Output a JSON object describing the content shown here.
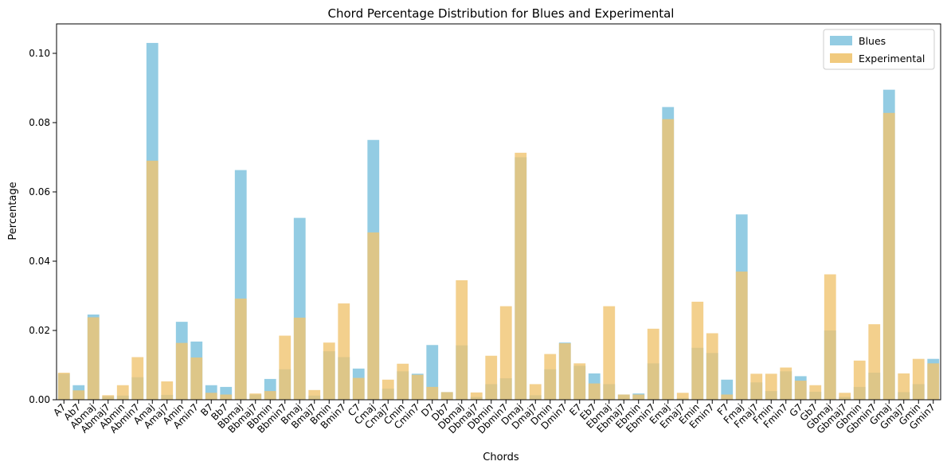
{
  "chart_data": {
    "type": "bar",
    "title": "Chord Percentage Distribution for Blues and Experimental",
    "xlabel": "Chords",
    "ylabel": "Percentage",
    "ylim": [
      0,
      0.1085
    ],
    "yticks": [
      0.0,
      0.02,
      0.04,
      0.06,
      0.08,
      0.1
    ],
    "ytick_labels": [
      "0.00",
      "0.02",
      "0.04",
      "0.06",
      "0.08",
      "0.10"
    ],
    "grid": false,
    "legend_position": "top-right",
    "overlay": true,
    "categories": [
      "A7",
      "Ab7",
      "Abmaj",
      "Abmaj7",
      "Abmin",
      "Abmin7",
      "Amaj",
      "Amaj7",
      "Amin",
      "Amin7",
      "B7",
      "Bb7",
      "Bbmaj",
      "Bbmaj7",
      "Bbmin",
      "Bbmin7",
      "Bmaj",
      "Bmaj7",
      "Bmin",
      "Bmin7",
      "C7",
      "Cmaj",
      "Cmaj7",
      "Cmin",
      "Cmin7",
      "D7",
      "Db7",
      "Dbmaj",
      "Dbmaj7",
      "Dbmin",
      "Dbmin7",
      "Dmaj",
      "Dmaj7",
      "Dmin",
      "Dmin7",
      "E7",
      "Eb7",
      "Ebmaj",
      "Ebmaj7",
      "Ebmin",
      "Ebmin7",
      "Emaj",
      "Emaj7",
      "Emin",
      "Emin7",
      "F7",
      "Fmaj",
      "Fmaj7",
      "Fmin",
      "Fmin7",
      "G7",
      "Gb7",
      "Gbmaj",
      "Gbmaj7",
      "Gbmin",
      "Gbmin7",
      "Gmaj",
      "Gmaj7",
      "Gmin",
      "Gmin7"
    ],
    "series": [
      {
        "name": "Blues",
        "color": "#87c6e0",
        "values": [
          0.0075,
          0.0042,
          0.0246,
          0.001,
          0.0012,
          0.0065,
          0.103,
          0.0014,
          0.0225,
          0.0168,
          0.0042,
          0.0037,
          0.0663,
          0.0015,
          0.006,
          0.0088,
          0.0525,
          0.0012,
          0.014,
          0.0123,
          0.009,
          0.075,
          0.0032,
          0.0082,
          0.0075,
          0.0158,
          0.0022,
          0.0157,
          0.0008,
          0.0045,
          0.0062,
          0.07,
          0.0013,
          0.0088,
          0.0165,
          0.0098,
          0.0076,
          0.0045,
          0.0015,
          0.0018,
          0.0105,
          0.0845,
          0.0005,
          0.015,
          0.0135,
          0.0058,
          0.0535,
          0.005,
          0.0025,
          0.0082,
          0.0068,
          0.0023,
          0.02,
          0.0008,
          0.0037,
          0.0078,
          0.0895,
          0.0022,
          0.0045,
          0.0118
        ]
      },
      {
        "name": "Experimental",
        "color": "#f0c470",
        "values": [
          0.0078,
          0.0027,
          0.0238,
          0.0013,
          0.0042,
          0.0123,
          0.069,
          0.0053,
          0.0164,
          0.0122,
          0.002,
          0.0015,
          0.0292,
          0.0018,
          0.0025,
          0.0185,
          0.0237,
          0.0028,
          0.0165,
          0.0278,
          0.0063,
          0.0483,
          0.0058,
          0.0104,
          0.0072,
          0.0037,
          0.0022,
          0.0345,
          0.0021,
          0.0127,
          0.027,
          0.0713,
          0.0045,
          0.0132,
          0.0163,
          0.0105,
          0.0047,
          0.027,
          0.0015,
          0.0015,
          0.0205,
          0.081,
          0.002,
          0.0283,
          0.0192,
          0.0015,
          0.037,
          0.0075,
          0.0075,
          0.0093,
          0.0055,
          0.0042,
          0.0362,
          0.002,
          0.0113,
          0.0218,
          0.0828,
          0.0076,
          0.0118,
          0.0105
        ]
      }
    ]
  }
}
